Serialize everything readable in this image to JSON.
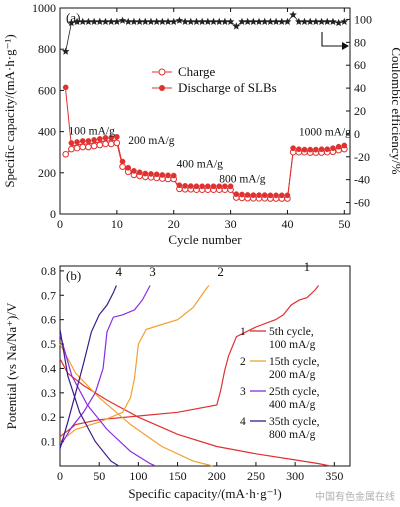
{
  "colors": {
    "charge": "#e03030",
    "discharge": "#e03030",
    "ce": "#222222",
    "c1": "#e03030",
    "c2": "#f0a030",
    "c3": "#8a2be2",
    "c4": "#3a1a8a"
  },
  "watermark": "中国有色金属在线",
  "chart_data": [
    {
      "type": "scatter",
      "panel_label": "(a)",
      "xlabel": "Cycle number",
      "ylabel": "Specific capacity/(mA·h·g⁻¹)",
      "y2label": "Coulombic efficiency/%",
      "xlim": [
        0,
        51
      ],
      "ylim": [
        0,
        1000
      ],
      "y2lim": [
        -70,
        110
      ],
      "x_ticks": [
        0,
        10,
        20,
        30,
        40,
        50
      ],
      "y_ticks": [
        0,
        200,
        400,
        600,
        800,
        1000
      ],
      "y2_ticks": [
        -60,
        -40,
        -20,
        0,
        20,
        40,
        60,
        80,
        100
      ],
      "legend_position": "top-middle",
      "annotations": [
        {
          "text": "100 mA/g",
          "x": 1.5,
          "y": 385
        },
        {
          "text": "200 mA/g",
          "x": 12,
          "y": 340
        },
        {
          "text": "400 mA/g",
          "x": 20.5,
          "y": 225
        },
        {
          "text": "800 mA/g",
          "x": 28,
          "y": 152
        },
        {
          "text": "1000 mA/g",
          "x": 42,
          "y": 380
        }
      ],
      "series": [
        {
          "name": "Charge",
          "marker": "open-circle",
          "axis": "left",
          "x": [
            1,
            2,
            3,
            4,
            5,
            6,
            7,
            8,
            9,
            10,
            11,
            12,
            13,
            14,
            15,
            16,
            17,
            18,
            19,
            20,
            21,
            22,
            23,
            24,
            25,
            26,
            27,
            28,
            29,
            30,
            31,
            32,
            33,
            34,
            35,
            36,
            37,
            38,
            39,
            40,
            41,
            42,
            43,
            44,
            45,
            46,
            47,
            48,
            49,
            50
          ],
          "y": [
            290,
            315,
            320,
            325,
            325,
            330,
            335,
            340,
            340,
            345,
            230,
            205,
            190,
            185,
            180,
            178,
            175,
            172,
            170,
            170,
            122,
            120,
            120,
            118,
            118,
            118,
            118,
            118,
            118,
            118,
            80,
            78,
            77,
            76,
            76,
            76,
            75,
            75,
            75,
            75,
            300,
            300,
            300,
            298,
            298,
            298,
            300,
            302,
            310,
            315
          ]
        },
        {
          "name": "Discharge of SLBs",
          "marker": "filled-circle",
          "axis": "left",
          "x": [
            1,
            2,
            3,
            4,
            5,
            6,
            7,
            8,
            9,
            10,
            11,
            12,
            13,
            14,
            15,
            16,
            17,
            18,
            19,
            20,
            21,
            22,
            23,
            24,
            25,
            26,
            27,
            28,
            29,
            30,
            31,
            32,
            33,
            34,
            35,
            36,
            37,
            38,
            39,
            40,
            41,
            42,
            43,
            44,
            45,
            46,
            47,
            48,
            49,
            50
          ],
          "y": [
            600,
            330,
            335,
            340,
            340,
            345,
            350,
            355,
            355,
            360,
            240,
            210,
            195,
            188,
            182,
            180,
            178,
            175,
            173,
            172,
            125,
            122,
            121,
            120,
            120,
            120,
            120,
            120,
            120,
            120,
            82,
            80,
            78,
            77,
            77,
            77,
            76,
            76,
            76,
            76,
            305,
            300,
            298,
            298,
            298,
            300,
            300,
            305,
            312,
            318
          ]
        },
        {
          "name": "",
          "marker": "filled-star",
          "axis": "right",
          "x": [
            1,
            2,
            3,
            4,
            5,
            6,
            7,
            8,
            9,
            10,
            11,
            12,
            13,
            14,
            15,
            16,
            17,
            18,
            19,
            20,
            21,
            22,
            23,
            24,
            25,
            26,
            27,
            28,
            29,
            30,
            31,
            32,
            33,
            34,
            35,
            36,
            37,
            38,
            39,
            40,
            41,
            42,
            43,
            44,
            45,
            46,
            47,
            48,
            49,
            50
          ],
          "y": [
            72,
            97,
            98,
            98,
            98,
            98,
            98,
            98,
            98,
            98,
            99,
            98,
            98,
            98,
            98,
            98,
            98,
            98,
            98,
            98,
            99,
            98,
            98,
            98,
            98,
            98,
            98,
            98,
            98,
            98,
            94,
            98,
            98,
            98,
            98,
            98,
            98,
            98,
            98,
            98,
            104,
            98,
            98,
            98,
            98,
            98,
            98,
            98,
            97,
            98
          ]
        }
      ]
    },
    {
      "type": "line",
      "panel_label": "(b)",
      "xlabel": "Specific capacity/(mA·h·g⁻¹)",
      "ylabel": "Potential (vs Na/Na⁺)/V",
      "xlim": [
        0,
        370
      ],
      "ylim": [
        0,
        0.82
      ],
      "x_ticks": [
        0,
        50,
        100,
        150,
        200,
        250,
        300,
        350
      ],
      "y_ticks": [
        0.1,
        0.2,
        0.3,
        0.4,
        0.5,
        0.6,
        0.7,
        0.8
      ],
      "curve_tags": [
        "1",
        "2",
        "3",
        "4"
      ],
      "legend_position": "right",
      "legend": [
        {
          "num": "1",
          "line1": "5th cycle,",
          "line2": "100 mA/g"
        },
        {
          "num": "2",
          "line1": "15th cycle,",
          "line2": "200 mA/g"
        },
        {
          "num": "3",
          "line1": "25th cycle,",
          "line2": "400 mA/g"
        },
        {
          "num": "4",
          "line1": "35th cycle,",
          "line2": "800 mA/g"
        }
      ],
      "series": [
        {
          "name": "1",
          "branch": "charge",
          "x": [
            0,
            20,
            50,
            100,
            150,
            200,
            205,
            210,
            215,
            225,
            250,
            275,
            285,
            295,
            305,
            315,
            325,
            330
          ],
          "y": [
            0.12,
            0.17,
            0.19,
            0.205,
            0.22,
            0.25,
            0.31,
            0.39,
            0.45,
            0.53,
            0.57,
            0.6,
            0.62,
            0.66,
            0.68,
            0.69,
            0.72,
            0.74
          ]
        },
        {
          "name": "1",
          "branch": "discharge",
          "x": [
            0,
            10,
            30,
            60,
            100,
            150,
            200,
            250,
            300,
            330,
            345
          ],
          "y": [
            0.44,
            0.38,
            0.33,
            0.27,
            0.2,
            0.13,
            0.08,
            0.05,
            0.025,
            0.01,
            0
          ]
        },
        {
          "name": "2",
          "branch": "charge",
          "x": [
            0,
            20,
            50,
            80,
            90,
            95,
            100,
            110,
            130,
            150,
            170,
            185,
            190
          ],
          "y": [
            0.1,
            0.15,
            0.18,
            0.22,
            0.28,
            0.36,
            0.5,
            0.56,
            0.58,
            0.6,
            0.65,
            0.72,
            0.74
          ]
        },
        {
          "name": "2",
          "branch": "discharge",
          "x": [
            0,
            20,
            50,
            90,
            130,
            170,
            195
          ],
          "y": [
            0.5,
            0.38,
            0.28,
            0.17,
            0.08,
            0.02,
            0
          ]
        },
        {
          "name": "3",
          "branch": "charge",
          "x": [
            0,
            15,
            30,
            45,
            55,
            60,
            68,
            80,
            95,
            105,
            115
          ],
          "y": [
            0.08,
            0.16,
            0.22,
            0.3,
            0.4,
            0.55,
            0.61,
            0.62,
            0.64,
            0.68,
            0.74
          ]
        },
        {
          "name": "3",
          "branch": "discharge",
          "x": [
            0,
            15,
            35,
            60,
            90,
            115,
            122
          ],
          "y": [
            0.54,
            0.37,
            0.25,
            0.15,
            0.06,
            0.01,
            0
          ]
        },
        {
          "name": "4",
          "branch": "charge",
          "x": [
            0,
            10,
            20,
            30,
            40,
            50,
            60,
            68,
            72
          ],
          "y": [
            0.07,
            0.18,
            0.3,
            0.42,
            0.55,
            0.62,
            0.66,
            0.71,
            0.74
          ]
        },
        {
          "name": "4",
          "branch": "discharge",
          "x": [
            0,
            10,
            25,
            45,
            65,
            75
          ],
          "y": [
            0.56,
            0.37,
            0.22,
            0.1,
            0.02,
            0
          ]
        }
      ]
    }
  ]
}
